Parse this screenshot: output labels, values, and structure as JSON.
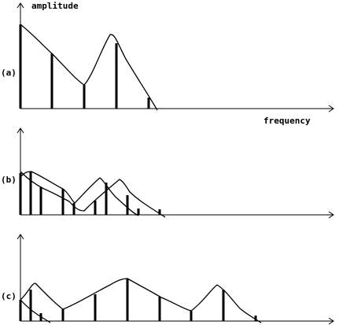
{
  "labels": {
    "y_axis": "amplitude",
    "x_axis": "frequency",
    "panel_a": "(a)",
    "panel_b": "(b)",
    "panel_c": "(c)"
  }
}
